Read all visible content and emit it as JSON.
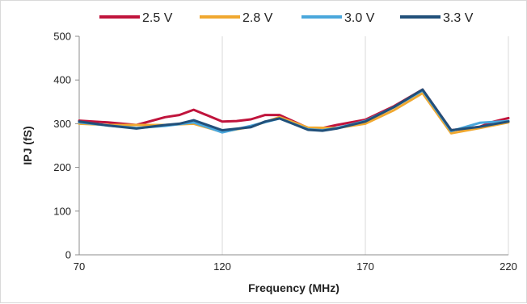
{
  "chart_data": {
    "type": "line",
    "title": "",
    "xlabel": "Frequency (MHz)",
    "ylabel": "IPJ (fS)",
    "xlim": [
      70,
      220
    ],
    "ylim": [
      0,
      500
    ],
    "x_ticks": [
      70,
      120,
      170,
      220
    ],
    "y_ticks": [
      0,
      100,
      200,
      300,
      400,
      500
    ],
    "grid": "vertical",
    "legend": "top",
    "series": [
      {
        "name": "2.5 V",
        "color": "#c0143c",
        "x": [
          70,
          80,
          90,
          100,
          105,
          110,
          120,
          125,
          130,
          135,
          140,
          150,
          155,
          160,
          170,
          180,
          190,
          200,
          210,
          215,
          220
        ],
        "y": [
          307,
          303,
          297,
          315,
          320,
          332,
          305,
          306,
          310,
          320,
          320,
          290,
          290,
          297,
          309,
          340,
          378,
          285,
          293,
          305,
          313
        ]
      },
      {
        "name": "2.8 V",
        "color": "#f0a830",
        "x": [
          70,
          80,
          90,
          100,
          110,
          120,
          130,
          140,
          150,
          160,
          170,
          180,
          190,
          200,
          210,
          220
        ],
        "y": [
          300,
          297,
          297,
          297,
          300,
          281,
          293,
          315,
          291,
          290,
          300,
          331,
          370,
          278,
          290,
          303
        ]
      },
      {
        "name": "3.0 V",
        "color": "#4aa7dc",
        "x": [
          70,
          80,
          90,
          100,
          110,
          120,
          130,
          140,
          150,
          155,
          160,
          170,
          180,
          190,
          200,
          210,
          220
        ],
        "y": [
          303,
          296,
          290,
          295,
          303,
          280,
          295,
          312,
          287,
          285,
          290,
          306,
          338,
          376,
          283,
          302,
          306
        ]
      },
      {
        "name": "3.3 V",
        "color": "#21507a",
        "x": [
          70,
          80,
          90,
          100,
          105,
          110,
          120,
          130,
          135,
          140,
          150,
          155,
          160,
          170,
          180,
          190,
          200,
          210,
          220
        ],
        "y": [
          305,
          296,
          289,
          297,
          300,
          308,
          285,
          292,
          305,
          312,
          286,
          284,
          289,
          305,
          338,
          378,
          285,
          293,
          305
        ]
      }
    ]
  }
}
